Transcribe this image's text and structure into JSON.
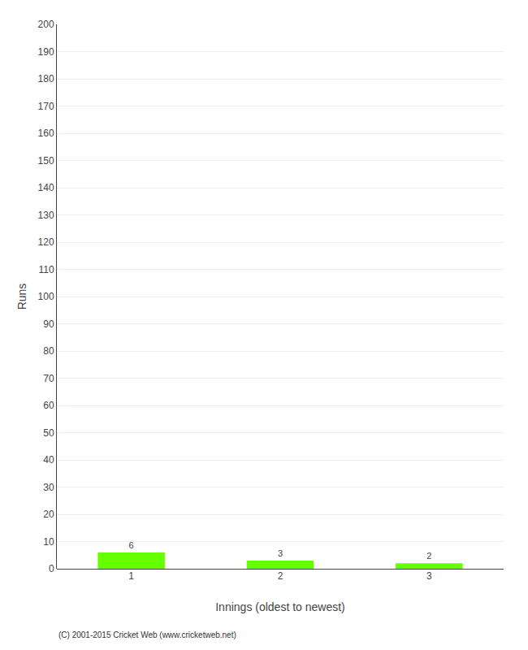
{
  "chart_data": {
    "type": "bar",
    "categories": [
      "1",
      "2",
      "3"
    ],
    "values": [
      6,
      3,
      2
    ],
    "color": "#66ff00",
    "xlabel": "Innings (oldest to newest)",
    "ylabel": "Runs",
    "ylim": [
      0,
      200
    ],
    "yticks": [
      0,
      10,
      20,
      30,
      40,
      50,
      60,
      70,
      80,
      90,
      100,
      110,
      120,
      130,
      140,
      150,
      160,
      170,
      180,
      190,
      200
    ],
    "grid": true,
    "data_labels": true,
    "footnote": "(C) 2001-2015 Cricket Web (www.cricketweb.net)"
  }
}
